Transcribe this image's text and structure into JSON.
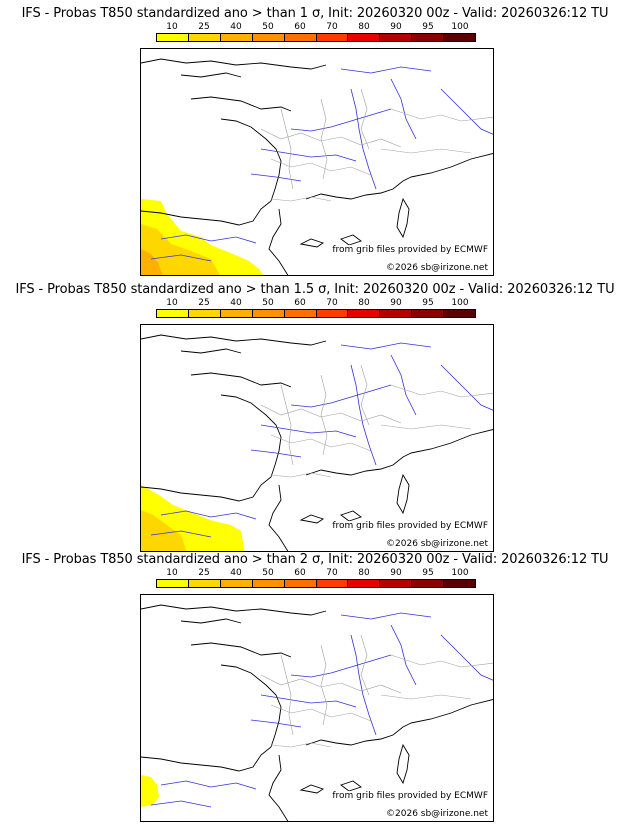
{
  "panels": [
    {
      "title": "IFS - Probas T850  standardized ano > than 1 σ, Init: 20260320 00z - Valid: 20260326:12 TU",
      "sigma": "1",
      "source_credit": "from grib files provided by ECMWF",
      "copyright": "©2026 sb@irizone.net"
    },
    {
      "title": "IFS - Probas T850  standardized ano > than 1.5 σ, Init: 20260320 00z - Valid: 20260326:12 TU",
      "sigma": "1.5",
      "source_credit": "from grib files provided by ECMWF",
      "copyright": "©2026 sb@irizone.net"
    },
    {
      "title": "IFS - Probas T850  standardized ano > than 2 σ, Init: 20260320 00z - Valid: 20260326:12 TU",
      "sigma": "2",
      "source_credit": "from grib files provided by ECMWF",
      "copyright": "©2026 sb@irizone.net"
    }
  ],
  "legend": {
    "ticks": [
      "10",
      "25",
      "40",
      "50",
      "60",
      "70",
      "80",
      "90",
      "95",
      "100"
    ],
    "colors": [
      "#ffff00",
      "#ffd700",
      "#ffb000",
      "#ff9000",
      "#ff7000",
      "#ff3c00",
      "#e60000",
      "#b40000",
      "#8c0000",
      "#5a0000"
    ]
  },
  "colors": {
    "coast": "#000000",
    "rivers": "#3232dc",
    "borders": "#a0a0a0",
    "prob_low": "#ffff00",
    "prob_mid": "#ffd700",
    "prob_high": "#ffb000"
  },
  "probability_areas": [
    {
      "panel": 1,
      "region": "Iberian Peninsula (north-west)",
      "max_probability_pct": 40
    },
    {
      "panel": 2,
      "region": "Iberian Peninsula (north-west)",
      "max_probability_pct": 25
    },
    {
      "panel": 3,
      "region": "Iberian Peninsula (north-west)",
      "max_probability_pct": 10
    }
  ]
}
